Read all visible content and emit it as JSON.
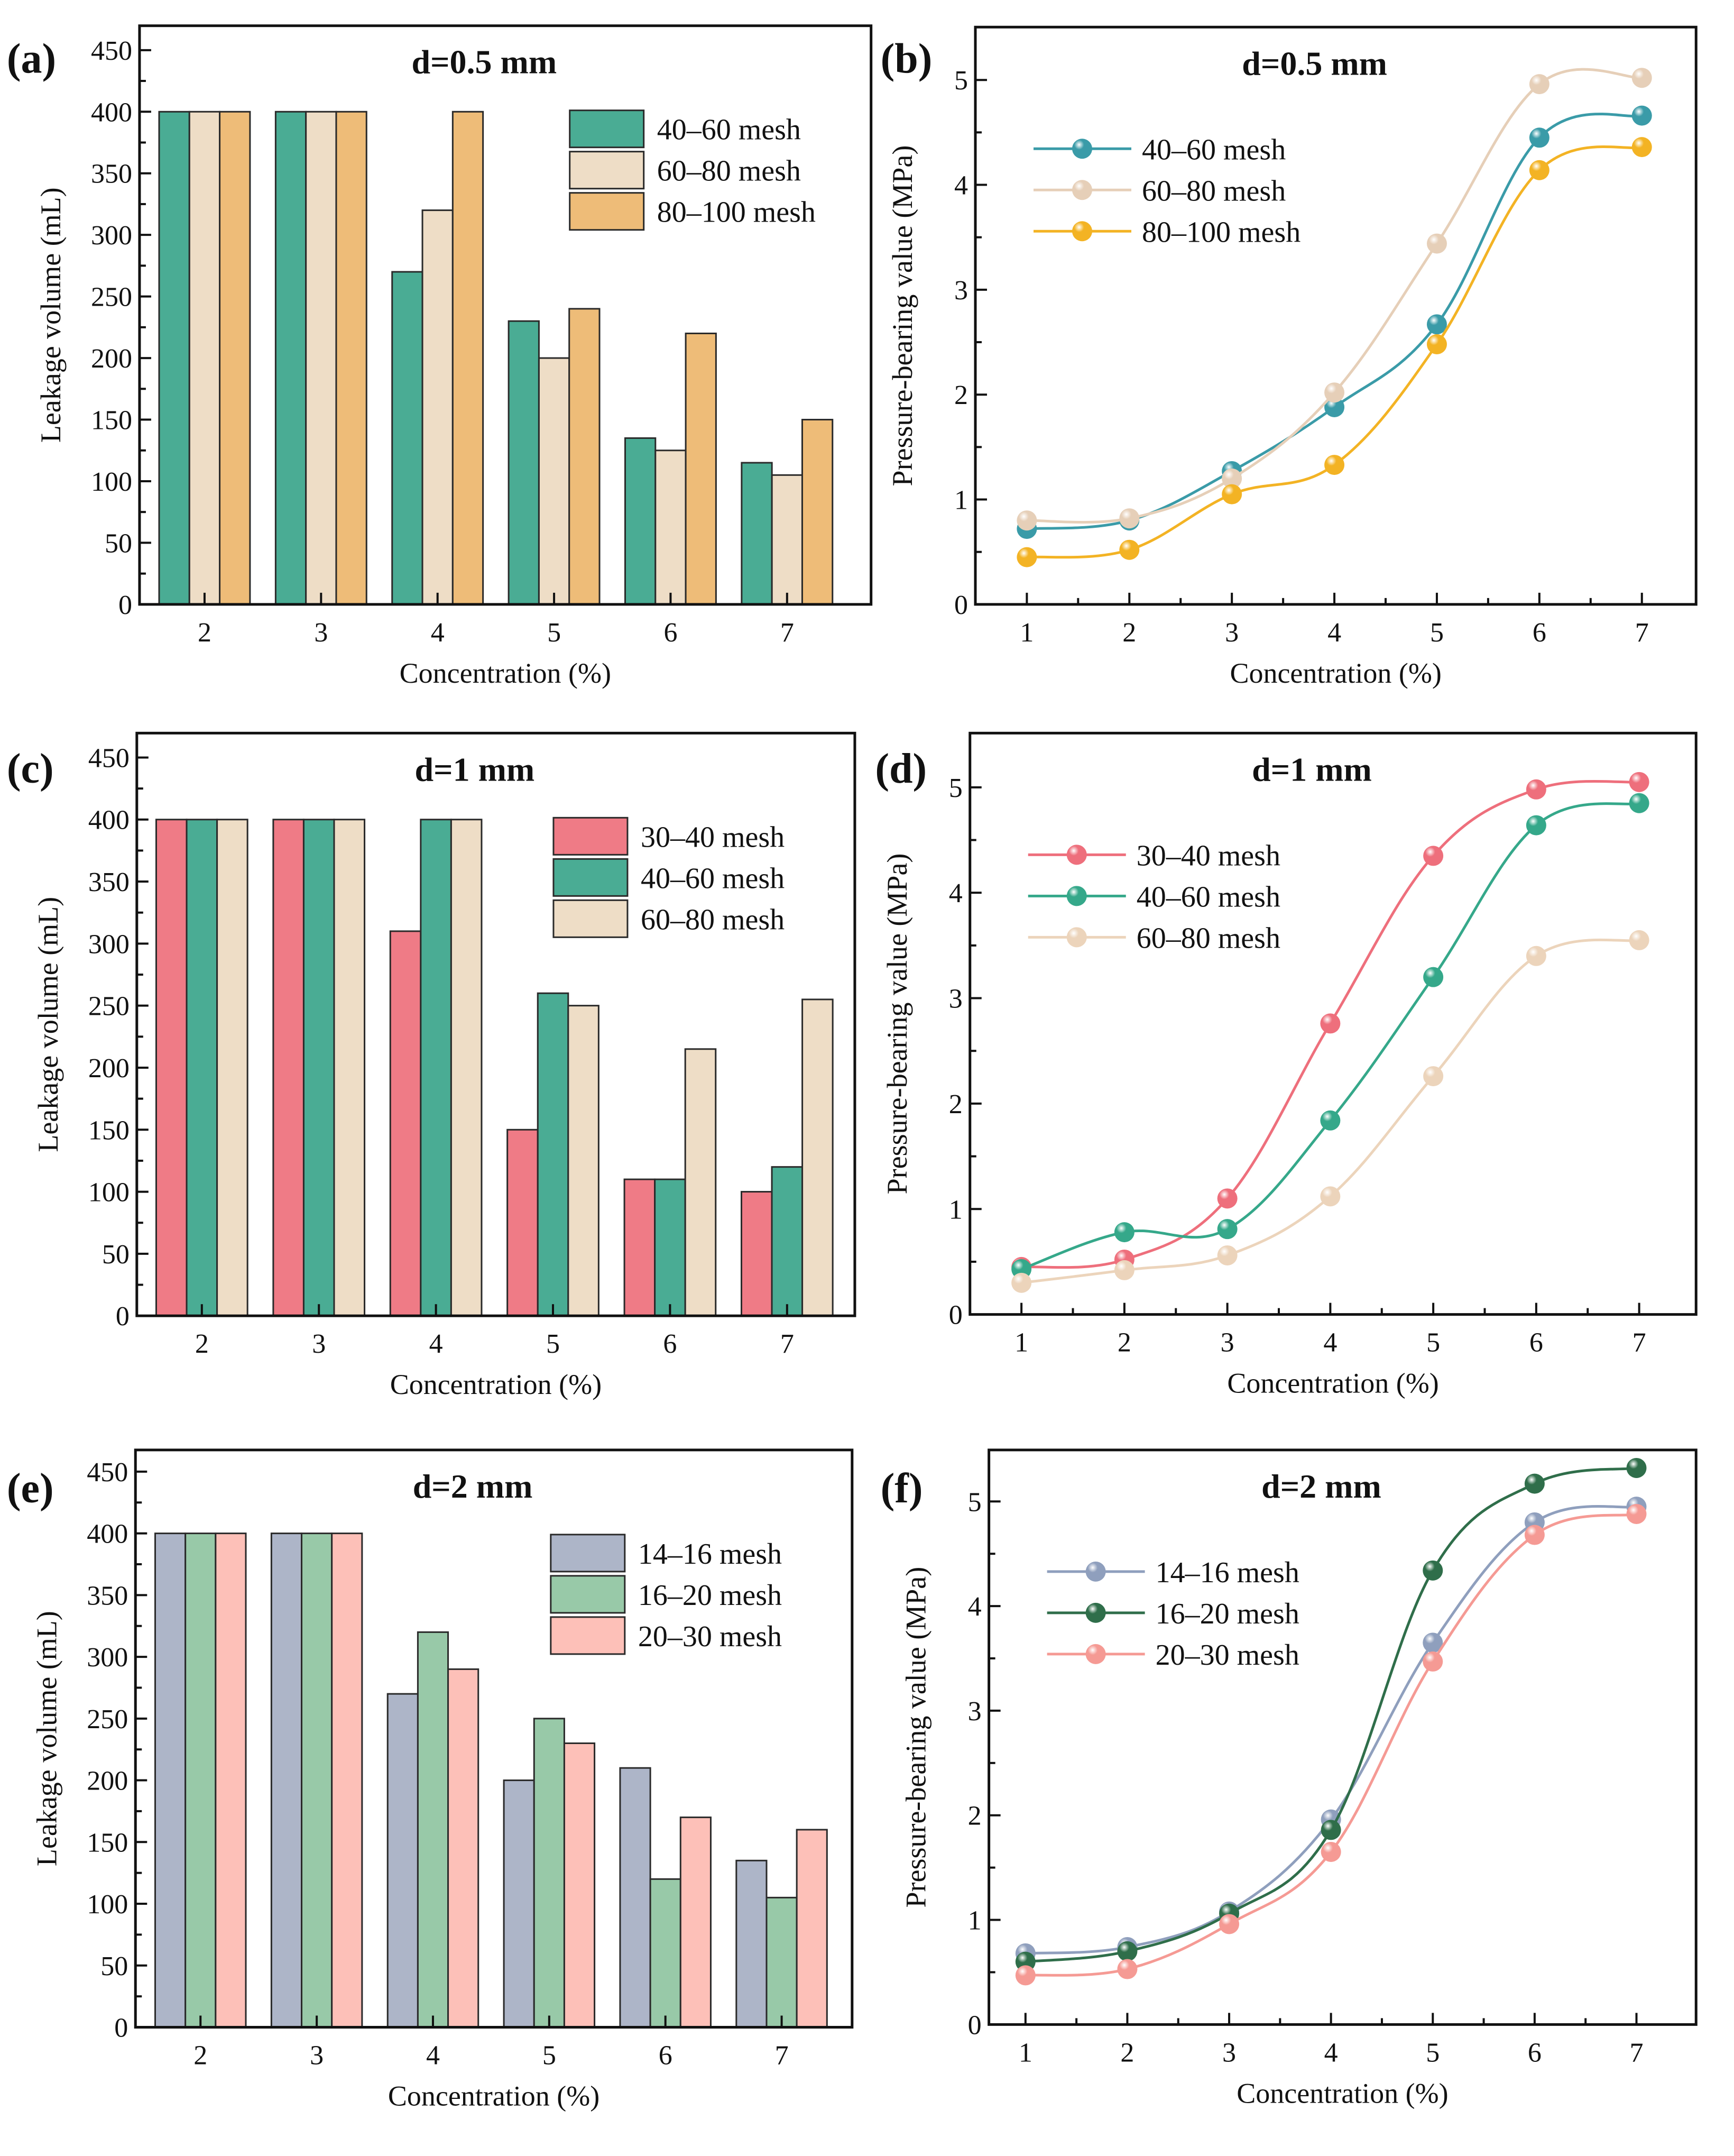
{
  "chart_data": [
    {
      "id": "a",
      "panel_label": "(a)",
      "type": "bar",
      "title": "d=0.5 mm",
      "xlabel": "Concentration (%)",
      "ylabel": "Leakage volume (mL)",
      "categories": [
        "2",
        "3",
        "4",
        "5",
        "6",
        "7"
      ],
      "ylim": [
        0,
        450
      ],
      "yticks": [
        0,
        50,
        100,
        150,
        200,
        250,
        300,
        350,
        400,
        450
      ],
      "legend_position": "top-right",
      "series": [
        {
          "name": "40–60 mesh",
          "color": "#4aac94",
          "values": [
            400,
            400,
            270,
            230,
            135,
            115
          ]
        },
        {
          "name": "60–80 mesh",
          "color": "#eeddc6",
          "values": [
            400,
            400,
            320,
            200,
            125,
            105
          ]
        },
        {
          "name": "80–100 mesh",
          "color": "#eebc78",
          "values": [
            400,
            400,
            400,
            240,
            220,
            150
          ]
        }
      ]
    },
    {
      "id": "b",
      "panel_label": "(b)",
      "type": "line",
      "title": "d=0.5 mm",
      "xlabel": "Concentration (%)",
      "ylabel": "Pressure-bearing value (MPa)",
      "x": [
        1,
        2,
        3,
        4,
        5,
        6,
        7
      ],
      "xlim": [
        0.5,
        7.5
      ],
      "ylim": [
        0,
        5.5
      ],
      "xticks": [
        1,
        2,
        3,
        4,
        5,
        6,
        7
      ],
      "yticks": [
        0,
        1,
        2,
        3,
        4,
        5
      ],
      "legend_position": "top-left",
      "series": [
        {
          "name": "40–60 mesh",
          "color": "#3a9ba8",
          "values": [
            0.72,
            0.8,
            1.27,
            1.88,
            2.67,
            4.45,
            4.66
          ]
        },
        {
          "name": "60–80 mesh",
          "color": "#e6cfb8",
          "values": [
            0.8,
            0.82,
            1.2,
            2.02,
            3.44,
            4.96,
            5.02
          ]
        },
        {
          "name": "80–100 mesh",
          "color": "#f3b324",
          "values": [
            0.45,
            0.52,
            1.05,
            1.33,
            2.48,
            4.14,
            4.36
          ]
        }
      ]
    },
    {
      "id": "c",
      "panel_label": "(c)",
      "type": "bar",
      "title": "d=1 mm",
      "xlabel": "Concentration (%)",
      "ylabel": "Leakage volume (mL)",
      "categories": [
        "2",
        "3",
        "4",
        "5",
        "6",
        "7"
      ],
      "ylim": [
        0,
        450
      ],
      "yticks": [
        0,
        50,
        100,
        150,
        200,
        250,
        300,
        350,
        400,
        450
      ],
      "legend_position": "top-right",
      "series": [
        {
          "name": "30–40 mesh",
          "color": "#ef7b86",
          "values": [
            400,
            400,
            310,
            150,
            110,
            100
          ]
        },
        {
          "name": "40–60 mesh",
          "color": "#4aac94",
          "values": [
            400,
            400,
            400,
            260,
            110,
            120
          ]
        },
        {
          "name": "60–80 mesh",
          "color": "#eeddc6",
          "values": [
            400,
            400,
            400,
            250,
            215,
            255
          ]
        }
      ]
    },
    {
      "id": "d",
      "panel_label": "(d)",
      "type": "line",
      "title": "d=1 mm",
      "xlabel": "Concentration (%)",
      "ylabel": "Pressure-bearing value (MPa)",
      "x": [
        1,
        2,
        3,
        4,
        5,
        6,
        7
      ],
      "xlim": [
        0.5,
        7.5
      ],
      "ylim": [
        0,
        5.5
      ],
      "xticks": [
        1,
        2,
        3,
        4,
        5,
        6,
        7
      ],
      "yticks": [
        0,
        1,
        2,
        3,
        4,
        5
      ],
      "legend_position": "top-left",
      "series": [
        {
          "name": "30–40 mesh",
          "color": "#ee6f7c",
          "values": [
            0.45,
            0.52,
            1.1,
            2.76,
            4.35,
            4.98,
            5.05
          ]
        },
        {
          "name": "40–60 mesh",
          "color": "#35a88a",
          "values": [
            0.43,
            0.78,
            0.81,
            1.84,
            3.2,
            4.64,
            4.85
          ]
        },
        {
          "name": "60–80 mesh",
          "color": "#ecd4bb",
          "values": [
            0.3,
            0.42,
            0.56,
            1.12,
            2.26,
            3.4,
            3.55
          ]
        }
      ]
    },
    {
      "id": "e",
      "panel_label": "(e)",
      "type": "bar",
      "title": "d=2 mm",
      "xlabel": "Concentration (%)",
      "ylabel": "Leakage volume (mL)",
      "categories": [
        "2",
        "3",
        "4",
        "5",
        "6",
        "7"
      ],
      "ylim": [
        0,
        450
      ],
      "yticks": [
        0,
        50,
        100,
        150,
        200,
        250,
        300,
        350,
        400,
        450
      ],
      "legend_position": "top-right",
      "series": [
        {
          "name": "14–16 mesh",
          "color": "#adb5c8",
          "values": [
            400,
            400,
            270,
            200,
            210,
            135
          ]
        },
        {
          "name": "16–20 mesh",
          "color": "#98c9a8",
          "values": [
            400,
            400,
            320,
            250,
            120,
            105
          ]
        },
        {
          "name": "20–30 mesh",
          "color": "#fdc0b8",
          "values": [
            400,
            400,
            290,
            230,
            170,
            160
          ]
        }
      ]
    },
    {
      "id": "f",
      "panel_label": "(f)",
      "type": "line",
      "title": "d=2 mm",
      "xlabel": "Concentration (%)",
      "ylabel": "Pressure-bearing value (MPa)",
      "x": [
        1,
        2,
        3,
        4,
        5,
        6,
        7
      ],
      "xlim": [
        0.5,
        7.5
      ],
      "ylim": [
        0,
        5.5
      ],
      "xticks": [
        1,
        2,
        3,
        4,
        5,
        6,
        7
      ],
      "yticks": [
        0,
        1,
        2,
        3,
        4,
        5
      ],
      "legend_position": "top-left",
      "series": [
        {
          "name": "14–16 mesh",
          "color": "#8f9fbd",
          "values": [
            0.68,
            0.74,
            1.08,
            1.96,
            3.65,
            4.8,
            4.95
          ]
        },
        {
          "name": "16–20 mesh",
          "color": "#2f6e4a",
          "values": [
            0.6,
            0.7,
            1.06,
            1.86,
            4.34,
            5.17,
            5.32
          ]
        },
        {
          "name": "20–30 mesh",
          "color": "#f59a94",
          "values": [
            0.47,
            0.53,
            0.96,
            1.65,
            3.47,
            4.68,
            4.88
          ]
        }
      ]
    }
  ]
}
